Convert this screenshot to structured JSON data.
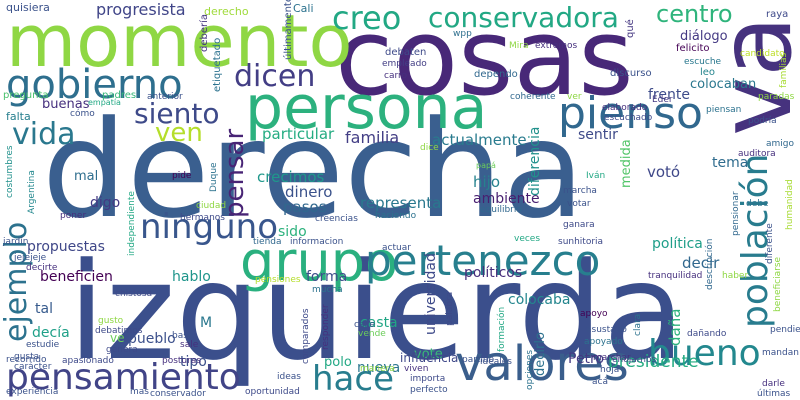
{
  "words": [
    {
      "text": "derecha",
      "color": "#3a5f8f"
    },
    {
      "text": "izquierda",
      "color": "#3b4f8c"
    },
    {
      "text": "cosas",
      "color": "#482878"
    },
    {
      "text": "momento",
      "color": "#8fd744"
    },
    {
      "text": "va",
      "color": "#46327e"
    },
    {
      "text": "persona",
      "color": "#2cb17e"
    },
    {
      "text": "grupo",
      "color": "#2ab07f"
    },
    {
      "text": "pienso",
      "color": "#31688e"
    },
    {
      "text": "valores",
      "color": "#3a5e8c"
    },
    {
      "text": "pertenezco",
      "color": "#277f8e"
    },
    {
      "text": "gobierno",
      "color": "#2e6f8e"
    },
    {
      "text": "población",
      "color": "#287c8e"
    },
    {
      "text": "hace",
      "color": "#287d8e"
    },
    {
      "text": "bueno",
      "color": "#23888e"
    },
    {
      "text": "pensamiento",
      "color": "#414487"
    },
    {
      "text": "creo",
      "color": "#22a884"
    },
    {
      "text": "conservadora",
      "color": "#22a884"
    },
    {
      "text": "ninguno",
      "color": "#39568c"
    },
    {
      "text": "ejemplo",
      "color": "#2c728e"
    },
    {
      "text": "vida",
      "color": "#2a788e"
    },
    {
      "text": "siento",
      "color": "#3e4a89"
    },
    {
      "text": "ven",
      "color": "#b5de2b"
    },
    {
      "text": "dicen",
      "color": "#433e85"
    },
    {
      "text": "pensar",
      "color": "#482475"
    },
    {
      "text": "centro",
      "color": "#2fb47c"
    },
    {
      "text": "presidente",
      "color": "#25ab82"
    },
    {
      "text": "familia",
      "color": "#433e85"
    },
    {
      "text": "progresista",
      "color": "#404588"
    },
    {
      "text": "actualmente",
      "color": "#297b8e"
    },
    {
      "text": "particular",
      "color": "#25ac82"
    },
    {
      "text": "diálogo",
      "color": "#443983"
    },
    {
      "text": "crecimos",
      "color": "#1f988b"
    },
    {
      "text": "dinero",
      "color": "#3b528b"
    },
    {
      "text": "pasos",
      "color": "#31688e"
    },
    {
      "text": "sido",
      "color": "#2db27d"
    },
    {
      "text": "representa",
      "color": "#2a788e"
    },
    {
      "text": "hijo",
      "color": "#26828e"
    },
    {
      "text": "ambiente",
      "color": "#481f70"
    },
    {
      "text": "diferencia",
      "color": "#21918c"
    },
    {
      "text": "universidad",
      "color": "#3e4a89"
    },
    {
      "text": "decir",
      "color": "#31688e"
    },
    {
      "text": "política",
      "color": "#1f9e89"
    },
    {
      "text": "colocaba",
      "color": "#24868e"
    },
    {
      "text": "colocaban",
      "color": "#2a778e"
    },
    {
      "text": "frente",
      "color": "#3e4c8a"
    },
    {
      "text": "sentir",
      "color": "#3e4a89"
    },
    {
      "text": "votó",
      "color": "#3f4889"
    },
    {
      "text": "medida",
      "color": "#52c569"
    },
    {
      "text": "tema",
      "color": "#2f6c8e"
    },
    {
      "text": "propuestas",
      "color": "#3f4788"
    },
    {
      "text": "beneficien",
      "color": "#440154"
    },
    {
      "text": "hablo",
      "color": "#1f958b"
    },
    {
      "text": "forma",
      "color": "#3d4e8a"
    },
    {
      "text": "políticos",
      "color": "#472d7b"
    },
    {
      "text": "daña",
      "color": "#2db27d"
    },
    {
      "text": "tal",
      "color": "#375b8d"
    },
    {
      "text": "decía",
      "color": "#1fa088"
    },
    {
      "text": "pueblo",
      "color": "#3c508b"
    },
    {
      "text": "tipo",
      "color": "#3c4f8a"
    },
    {
      "text": "casta",
      "color": "#21a685"
    },
    {
      "text": "vote",
      "color": "#38b977"
    },
    {
      "text": "decirlo",
      "color": "#2c718e"
    },
    {
      "text": "Petro",
      "color": "#443a83"
    },
    {
      "text": "nueva",
      "color": "#2a768e"
    },
    {
      "text": "polo",
      "color": "#22a884"
    },
    {
      "text": "influencia",
      "color": "#3f4889"
    },
    {
      "text": "digo",
      "color": "#443983"
    },
    {
      "text": "mal",
      "color": "#2e6e8e"
    },
    {
      "text": "buenas",
      "color": "#46307e"
    },
    {
      "text": "ve",
      "color": "#6ccd5a"
    },
    {
      "text": "M",
      "color": "#2a788e"
    },
    {
      "text": "falta",
      "color": "#277f8e"
    },
    {
      "text": "quisiera",
      "color": "#3b528b"
    },
    {
      "text": "derecho",
      "color": "#9fda3a"
    },
    {
      "text": "Cali",
      "color": "#2c728e"
    },
    {
      "text": "raya",
      "color": "#3e4989"
    },
    {
      "text": "felicito",
      "color": "#440154"
    },
    {
      "text": "candidato",
      "color": "#bddf26"
    },
    {
      "text": "escuche",
      "color": "#2a788e"
    },
    {
      "text": "leo",
      "color": "#25858e"
    },
    {
      "text": "pregunta",
      "color": "#4ac16d"
    },
    {
      "text": "padres",
      "color": "#35b779"
    },
    {
      "text": "anterior",
      "color": "#3b528b"
    },
    {
      "text": "debería",
      "color": "#453781"
    },
    {
      "text": "etiquetado",
      "color": "#2c728e"
    },
    {
      "text": "últimamente",
      "color": "#3b528b"
    },
    {
      "text": "debaten",
      "color": "#3e4a89"
    },
    {
      "text": "empleado",
      "color": "#433e85"
    },
    {
      "text": "carro",
      "color": "#46307e"
    },
    {
      "text": "wpp",
      "color": "#2e6f8e"
    },
    {
      "text": "Mira",
      "color": "#8fd744"
    },
    {
      "text": "extremos",
      "color": "#46307e"
    },
    {
      "text": "qué",
      "color": "#453781"
    },
    {
      "text": "dependo",
      "color": "#31688e"
    },
    {
      "text": "discurso",
      "color": "#3b528b"
    },
    {
      "text": "coherente",
      "color": "#31688e"
    },
    {
      "text": "ver",
      "color": "#8fd744"
    },
    {
      "text": "Eder",
      "color": "#443983"
    },
    {
      "text": "paradas",
      "color": "#8fd744"
    },
    {
      "text": "familias",
      "color": "#a8db34"
    },
    {
      "text": "empatía",
      "color": "#22a884"
    },
    {
      "text": "cómo",
      "color": "#3b528b"
    },
    {
      "text": "elaborado",
      "color": "#46307e"
    },
    {
      "text": "escuchado",
      "color": "#3e4a89"
    },
    {
      "text": "piensan",
      "color": "#2c728e"
    },
    {
      "text": "podría",
      "color": "#3b528b"
    },
    {
      "text": "amigo",
      "color": "#31688e"
    },
    {
      "text": "auditora",
      "color": "#46307e"
    },
    {
      "text": "costumbres",
      "color": "#21918c"
    },
    {
      "text": "Argentina",
      "color": "#23888e"
    },
    {
      "text": "dice",
      "color": "#8fd744"
    },
    {
      "text": "papá",
      "color": "#6ccd5a"
    },
    {
      "text": "Iván",
      "color": "#22a884"
    },
    {
      "text": "marcha",
      "color": "#3b528b"
    },
    {
      "text": "votar",
      "color": "#3b528b"
    },
    {
      "text": "ganara",
      "color": "#3e4a89"
    },
    {
      "text": "pensionar",
      "color": "#31688e"
    },
    {
      "text": "debe",
      "color": "#2c728e"
    },
    {
      "text": "humanidad",
      "color": "#a8db34"
    },
    {
      "text": "pide",
      "color": "#440154"
    },
    {
      "text": "Duque",
      "color": "#2c728e"
    },
    {
      "text": "jardín",
      "color": "#3b528b"
    },
    {
      "text": "poner",
      "color": "#46307e"
    },
    {
      "text": "independiente",
      "color": "#22a884"
    },
    {
      "text": "ciudad",
      "color": "#8fd744"
    },
    {
      "text": "hermanos",
      "color": "#3e4a89"
    },
    {
      "text": "creencias",
      "color": "#3b528b"
    },
    {
      "text": "haciendo",
      "color": "#2c728e"
    },
    {
      "text": "equilibrio",
      "color": "#31688e"
    },
    {
      "text": "sunhitoria",
      "color": "#3e4a89"
    },
    {
      "text": "descripción",
      "color": "#31688e"
    },
    {
      "text": "diferente",
      "color": "#3b528b"
    },
    {
      "text": "beneficiarse",
      "color": "#8fd744"
    },
    {
      "text": "jejejeje",
      "color": "#3b528b"
    },
    {
      "text": "decirte",
      "color": "#46307e"
    },
    {
      "text": "chistosa",
      "color": "#3e4a89"
    },
    {
      "text": "tienda",
      "color": "#31688e"
    },
    {
      "text": "informacion",
      "color": "#3b528b"
    },
    {
      "text": "actuar",
      "color": "#3b528b"
    },
    {
      "text": "veces",
      "color": "#22a884"
    },
    {
      "text": "haber",
      "color": "#8fd744"
    },
    {
      "text": "tranquilidad",
      "color": "#46307e"
    },
    {
      "text": "pendiente",
      "color": "#3b528b"
    },
    {
      "text": "gusto",
      "color": "#8fd744"
    },
    {
      "text": "debatimos",
      "color": "#3e4a89"
    },
    {
      "text": "base",
      "color": "#3b528b"
    },
    {
      "text": "pensiones",
      "color": "#b5de2b"
    },
    {
      "text": "mucha",
      "color": "#2c728e"
    },
    {
      "text": "palabra",
      "color": "#3e4a89"
    },
    {
      "text": "asustado",
      "color": "#3b528b"
    },
    {
      "text": "apoyo",
      "color": "#440154"
    },
    {
      "text": "estudie",
      "color": "#3b528b"
    },
    {
      "text": "genera",
      "color": "#3e4a89"
    },
    {
      "text": "ligado",
      "color": "#3b528b"
    },
    {
      "text": "comparados",
      "color": "#3e4a89"
    },
    {
      "text": "responder",
      "color": "#46307e"
    },
    {
      "text": "calle",
      "color": "#3b528b"
    },
    {
      "text": "formación",
      "color": "#22a884"
    },
    {
      "text": "apoyado",
      "color": "#2c728e"
    },
    {
      "text": "dañando",
      "color": "#3e4a89"
    },
    {
      "text": "clara",
      "color": "#2c728e"
    },
    {
      "text": "gusta",
      "color": "#3b528b"
    },
    {
      "text": "carácter",
      "color": "#3b528b"
    },
    {
      "text": "sale",
      "color": "#46307e"
    },
    {
      "text": "vende",
      "color": "#6ccd5a"
    },
    {
      "text": "ideales",
      "color": "#3b528b"
    },
    {
      "text": "marchar",
      "color": "#46307e"
    },
    {
      "text": "hoja",
      "color": "#3b528b"
    },
    {
      "text": "mandan",
      "color": "#3b528b"
    },
    {
      "text": "recorrido",
      "color": "#3b528b"
    },
    {
      "text": "apasionado",
      "color": "#3e4a89"
    },
    {
      "text": "posturas",
      "color": "#46307e"
    },
    {
      "text": "manera",
      "color": "#8fd744"
    },
    {
      "text": "viven",
      "color": "#46307e"
    },
    {
      "text": "partido",
      "color": "#3b528b"
    },
    {
      "text": "enojarnos",
      "color": "#3e4a89"
    },
    {
      "text": "ideas",
      "color": "#3b528b"
    },
    {
      "text": "opciones",
      "color": "#2c728e"
    },
    {
      "text": "importa",
      "color": "#3e4a89"
    },
    {
      "text": "acá",
      "color": "#3b528b"
    },
    {
      "text": "darle",
      "color": "#46307e"
    },
    {
      "text": "experiencia",
      "color": "#3b528b"
    },
    {
      "text": "mas",
      "color": "#3b528b"
    },
    {
      "text": "conservador",
      "color": "#3b528b"
    },
    {
      "text": "oportunidad",
      "color": "#3e4a89"
    },
    {
      "text": "perfecto",
      "color": "#3b528b"
    },
    {
      "text": "últimas",
      "color": "#3b528b"
    }
  ]
}
